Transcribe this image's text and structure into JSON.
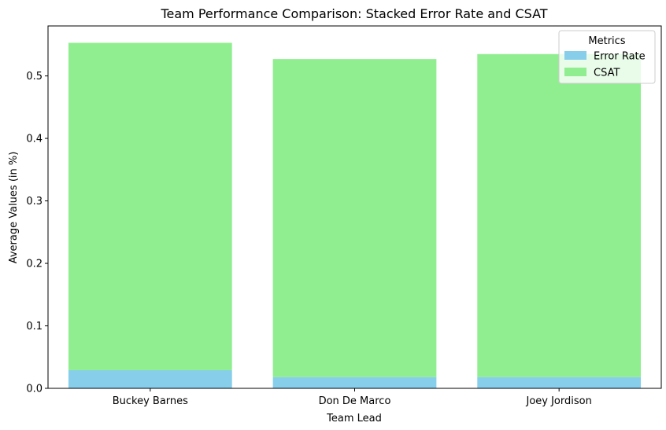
{
  "chart_data": {
    "type": "bar",
    "stacked": true,
    "title": "Team Performance Comparison: Stacked Error Rate and CSAT",
    "xlabel": "Team Lead",
    "ylabel": "Average Values (in %)",
    "categories": [
      "Buckey Barnes",
      "Don De Marco",
      "Joey Jordison"
    ],
    "series": [
      {
        "name": "Error Rate",
        "color": "#87ceeb",
        "values": [
          0.029,
          0.018,
          0.018
        ]
      },
      {
        "name": "CSAT",
        "color": "#90ee90",
        "values": [
          0.524,
          0.509,
          0.517
        ]
      }
    ],
    "ylim": [
      0,
      0.58
    ],
    "yticks": [
      "0.0",
      "0.1",
      "0.2",
      "0.3",
      "0.4",
      "0.5"
    ],
    "legend": {
      "title": "Metrics",
      "position": "top-right"
    },
    "grid": false
  }
}
